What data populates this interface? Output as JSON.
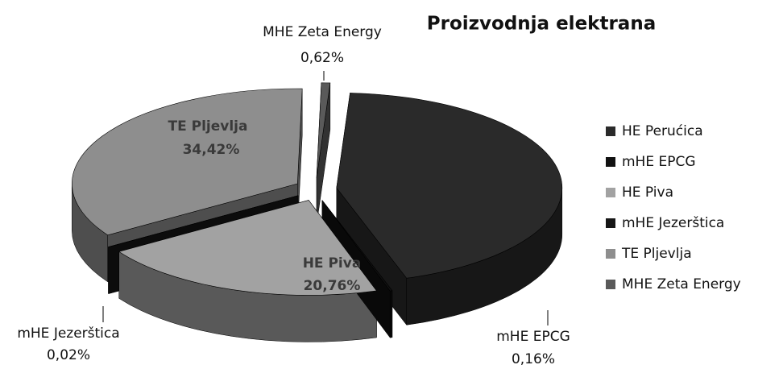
{
  "chart_data": {
    "type": "pie3d",
    "title": "Proizvodnja elektrana",
    "categories": [
      "HE Perućica",
      "mHE EPCG",
      "HE Piva",
      "mHE Jezerštica",
      "TE Pljevlja",
      "MHE Zeta Energy"
    ],
    "values": [
      44.02,
      0.16,
      20.76,
      0.02,
      34.42,
      0.62
    ],
    "value_labels": [
      null,
      "0,16%",
      "20,76%",
      "0,02%",
      "34,42%",
      "0,62%"
    ],
    "colors": [
      "#2a2a2a",
      "#111111",
      "#a2a2a2",
      "#161616",
      "#8e8e8e",
      "#5a5a5a"
    ],
    "legend": "right"
  }
}
